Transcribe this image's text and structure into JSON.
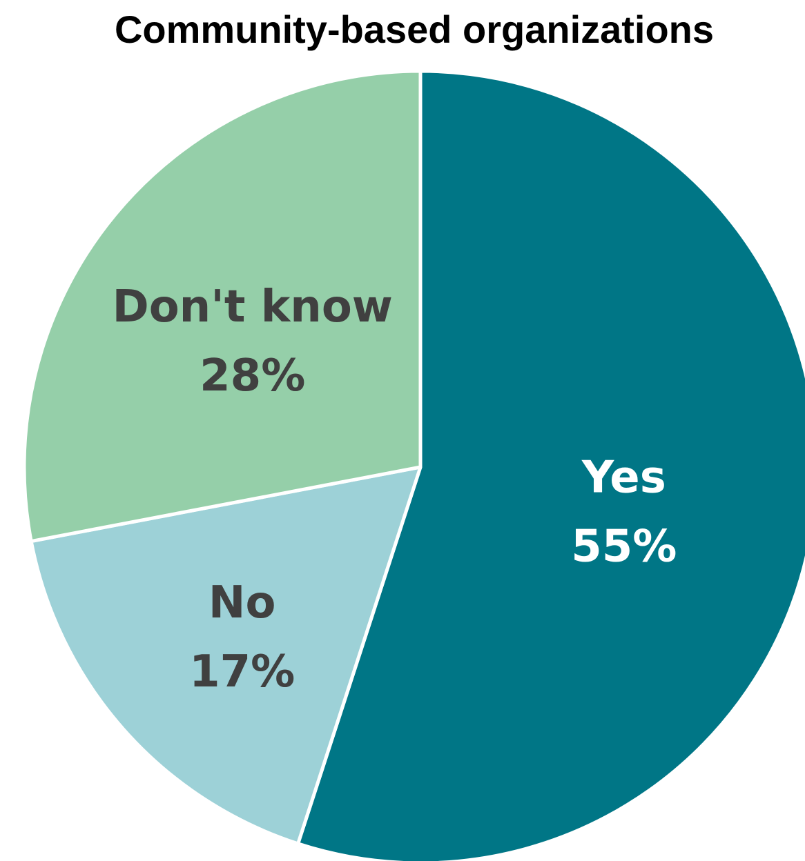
{
  "chart_data": {
    "type": "pie",
    "title": "Community-based organizations",
    "slices": [
      {
        "label": "Yes",
        "value": 55,
        "value_label": "55%",
        "color": "#007686",
        "text_color": "#ffffff"
      },
      {
        "label": "No",
        "value": 17,
        "value_label": "17%",
        "color": "#9dd1d7",
        "text_color": "#404040"
      },
      {
        "label": "Don't know",
        "value": 28,
        "value_label": "28%",
        "color": "#95cfa9",
        "text_color": "#404040"
      }
    ],
    "start_angle": "12 o'clock",
    "direction": "clockwise",
    "legend": "none",
    "data_labels": "inside"
  }
}
